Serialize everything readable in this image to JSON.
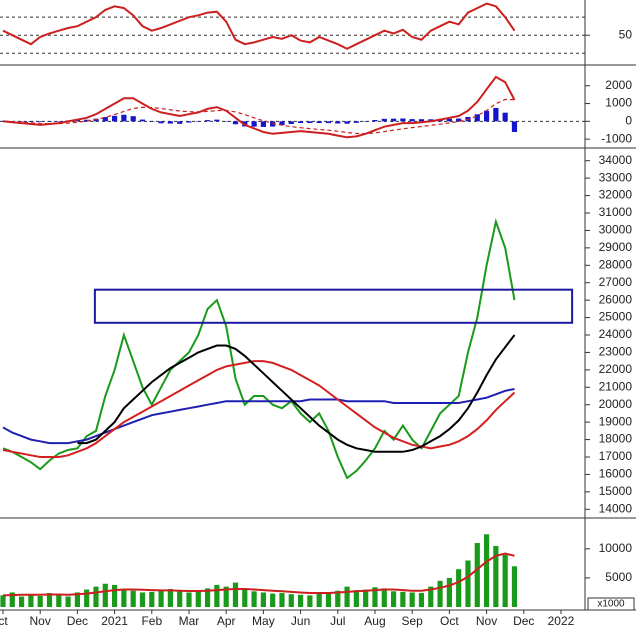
{
  "x_axis": {
    "x": [
      0,
      0.25,
      0.5,
      0.75,
      1,
      1.25,
      1.5,
      1.75,
      2,
      2.25,
      2.5,
      2.75,
      3,
      3.25,
      3.5,
      3.75,
      4,
      4.25,
      4.5,
      4.75,
      5,
      5.25,
      5.5,
      5.75,
      6,
      6.25,
      6.5,
      6.75,
      7,
      7.25,
      7.5,
      7.75,
      8,
      8.25,
      8.5,
      8.75,
      9,
      9.25,
      9.5,
      9.75,
      10,
      10.25,
      10.5,
      10.75,
      11,
      11.25,
      11.5,
      11.75,
      12,
      12.25,
      12.5,
      12.75,
      13,
      13.25,
      13.5,
      13.75
    ],
    "xlim": [
      0,
      15.7
    ],
    "xticks": [
      {
        "value": 0,
        "label": "ct"
      },
      {
        "value": 1,
        "label": "Nov"
      },
      {
        "value": 2,
        "label": "Dec"
      },
      {
        "value": 3,
        "label": "2021"
      },
      {
        "value": 4,
        "label": "Feb"
      },
      {
        "value": 5,
        "label": "Mar"
      },
      {
        "value": 6,
        "label": "Apr"
      },
      {
        "value": 7,
        "label": "May"
      },
      {
        "value": 8,
        "label": "Jun"
      },
      {
        "value": 9,
        "label": "Jul"
      },
      {
        "value": 10,
        "label": "Aug"
      },
      {
        "value": 11,
        "label": "Sep"
      },
      {
        "value": 12,
        "label": "Oct"
      },
      {
        "value": 13,
        "label": "Nov"
      },
      {
        "value": 14,
        "label": "Dec"
      },
      {
        "value": 15,
        "label": "2022"
      }
    ]
  },
  "chart_data": [
    {
      "type": "line",
      "ylim": [
        17,
        89
      ],
      "yticks": [
        50
      ],
      "guides": [
        30,
        70
      ],
      "series": [
        {
          "kind": "line",
          "color": "#cc2020",
          "values": [
            55,
            50,
            45,
            40,
            48,
            52,
            55,
            58,
            60,
            65,
            70,
            78,
            82,
            80,
            72,
            60,
            55,
            58,
            62,
            66,
            70,
            72,
            75,
            76,
            65,
            45,
            40,
            42,
            45,
            48,
            46,
            50,
            44,
            42,
            48,
            44,
            40,
            35,
            40,
            45,
            50,
            55,
            52,
            56,
            48,
            45,
            55,
            60,
            65,
            62,
            75,
            80,
            85,
            82,
            70,
            55
          ]
        }
      ]
    },
    {
      "type": "combo",
      "ylim": [
        -1500,
        3000
      ],
      "yticks": [
        2000,
        1000,
        0,
        -1000
      ],
      "guides": [
        0
      ],
      "series": [
        {
          "kind": "bar",
          "color": "#1515cc",
          "values": [
            0,
            -15,
            -25,
            -35,
            -40,
            -5,
            15,
            50,
            75,
            90,
            150,
            240,
            310,
            370,
            290,
            100,
            -35,
            -110,
            -125,
            -140,
            -70,
            -15,
            70,
            95,
            -5,
            -165,
            -290,
            -300,
            -315,
            -295,
            -215,
            -150,
            -95,
            -95,
            -95,
            -100,
            -120,
            -135,
            -85,
            -5,
            75,
            140,
            150,
            160,
            125,
            120,
            115,
            130,
            145,
            155,
            245,
            395,
            595,
            755,
            485,
            -600
          ]
        },
        {
          "kind": "line",
          "color": "#cc2020",
          "values": [
            0,
            -50,
            -100,
            -150,
            -200,
            -150,
            -100,
            0,
            100,
            200,
            400,
            700,
            1000,
            1300,
            1300,
            1000,
            700,
            500,
            400,
            300,
            400,
            500,
            700,
            800,
            600,
            200,
            -200,
            -400,
            -600,
            -700,
            -650,
            -600,
            -550,
            -600,
            -650,
            -700,
            -800,
            -900,
            -850,
            -700,
            -500,
            -300,
            -200,
            -100,
            -100,
            -50,
            0,
            100,
            200,
            300,
            600,
            1100,
            1800,
            2500,
            2200,
            1200
          ]
        },
        {
          "kind": "line",
          "color": "#cc2020",
          "dashed": true,
          "values": [
            0,
            -20,
            -50,
            -80,
            -120,
            -140,
            -130,
            -100,
            -50,
            20,
            100,
            220,
            380,
            560,
            720,
            790,
            770,
            720,
            650,
            580,
            540,
            530,
            560,
            610,
            610,
            530,
            380,
            200,
            30,
            -110,
            -220,
            -300,
            -360,
            -410,
            -460,
            -500,
            -560,
            -630,
            -680,
            -690,
            -650,
            -580,
            -500,
            -420,
            -350,
            -290,
            -230,
            -160,
            -90,
            -10,
            110,
            310,
            610,
            990,
            1230,
            1220
          ]
        }
      ]
    },
    {
      "type": "line",
      "ylim": [
        13500,
        34500
      ],
      "yticks": [
        34000,
        33000,
        32000,
        31000,
        30000,
        29000,
        28000,
        27000,
        26000,
        25000,
        24000,
        23000,
        22000,
        21000,
        20000,
        19000,
        18000,
        17000,
        16000,
        15000,
        14000
      ],
      "zone": {
        "xlim": [
          2.47,
          15.3
        ],
        "ylim": [
          24700,
          26600
        ],
        "color": "#1a1aa0"
      },
      "series": [
        {
          "kind": "line",
          "color": "#1a9a1a",
          "values": [
            17500,
            17300,
            17000,
            16700,
            16300,
            16800,
            17200,
            17400,
            17500,
            18200,
            18500,
            20500,
            22000,
            24000,
            22500,
            21000,
            20000,
            21000,
            22000,
            22500,
            23000,
            24000,
            25500,
            26000,
            24500,
            21500,
            20000,
            20500,
            20500,
            20000,
            19800,
            20200,
            19500,
            19000,
            19500,
            18500,
            17000,
            15800,
            16200,
            16800,
            17500,
            18500,
            18000,
            18800,
            18000,
            17500,
            18500,
            19500,
            20000,
            20500,
            23000,
            25000,
            28000,
            30500,
            29000,
            26000
          ]
        },
        {
          "kind": "line",
          "color": "#2020b0",
          "values": [
            18700,
            18400,
            18200,
            18000,
            17900,
            17800,
            17800,
            17800,
            17900,
            18000,
            18200,
            18400,
            18600,
            18800,
            19000,
            19200,
            19400,
            19500,
            19600,
            19700,
            19800,
            19900,
            20000,
            20100,
            20200,
            20200,
            20200,
            20200,
            20200,
            20200,
            20200,
            20200,
            20200,
            20300,
            20300,
            20300,
            20300,
            20200,
            20200,
            20200,
            20200,
            20200,
            20100,
            20100,
            20100,
            20100,
            20100,
            20100,
            20100,
            20100,
            20200,
            20300,
            20400,
            20600,
            20800,
            20900
          ]
        },
        {
          "kind": "line",
          "color": "#d42020",
          "values": [
            17400,
            17300,
            17200,
            17100,
            17000,
            17000,
            17000,
            17100,
            17300,
            17500,
            17800,
            18200,
            18600,
            19000,
            19300,
            19600,
            19900,
            20200,
            20500,
            20800,
            21100,
            21400,
            21700,
            22000,
            22200,
            22300,
            22400,
            22500,
            22500,
            22400,
            22200,
            22000,
            21700,
            21400,
            21100,
            20700,
            20300,
            19900,
            19500,
            19100,
            18700,
            18400,
            18100,
            17900,
            17700,
            17600,
            17500,
            17600,
            17700,
            17900,
            18200,
            18600,
            19100,
            19700,
            20200,
            20700
          ]
        },
        {
          "kind": "line",
          "color": "#000000",
          "values": [
            null,
            null,
            null,
            null,
            null,
            null,
            null,
            null,
            17800,
            17800,
            18000,
            18500,
            19000,
            19800,
            20300,
            20800,
            21300,
            21700,
            22100,
            22400,
            22700,
            23000,
            23200,
            23400,
            23400,
            23200,
            22800,
            22300,
            21800,
            21300,
            20800,
            20300,
            19800,
            19300,
            18800,
            18400,
            18000,
            17700,
            17500,
            17400,
            17300,
            17300,
            17300,
            17300,
            17400,
            17600,
            17900,
            18200,
            18600,
            19100,
            19800,
            20700,
            21700,
            22600,
            23300,
            24000
          ]
        }
      ]
    },
    {
      "type": "combo",
      "ylim": [
        0,
        15300
      ],
      "yticks": [
        10000,
        5000
      ],
      "unit": "x1000",
      "series": [
        {
          "kind": "bar",
          "color": "#1a9a1a",
          "values": [
            2000,
            2500,
            1800,
            2200,
            1900,
            2400,
            2100,
            1800,
            2500,
            3000,
            3500,
            4000,
            3800,
            3000,
            2800,
            2500,
            2600,
            2900,
            3100,
            2700,
            2500,
            2800,
            3200,
            3800,
            3500,
            4200,
            3000,
            2700,
            2500,
            2300,
            2400,
            2200,
            2100,
            2000,
            2300,
            2500,
            2800,
            3500,
            2900,
            3000,
            3400,
            3200,
            2700,
            2600,
            2500,
            2400,
            3500,
            4500,
            5000,
            6500,
            8000,
            11000,
            12500,
            10500,
            9000,
            7000
          ]
        },
        {
          "kind": "line",
          "color": "#cc2020",
          "values": [
            2000,
            2050,
            2100,
            2100,
            2100,
            2150,
            2150,
            2100,
            2200,
            2300,
            2500,
            2700,
            2900,
            3000,
            3000,
            2950,
            2900,
            2850,
            2850,
            2800,
            2750,
            2750,
            2800,
            2900,
            3000,
            3100,
            3100,
            3000,
            2900,
            2800,
            2700,
            2600,
            2500,
            2400,
            2400,
            2400,
            2500,
            2600,
            2700,
            2800,
            2900,
            3000,
            3000,
            2900,
            2800,
            2800,
            3000,
            3300,
            3700,
            4300,
            5200,
            6500,
            7800,
            8800,
            9200,
            8800
          ]
        }
      ]
    }
  ]
}
